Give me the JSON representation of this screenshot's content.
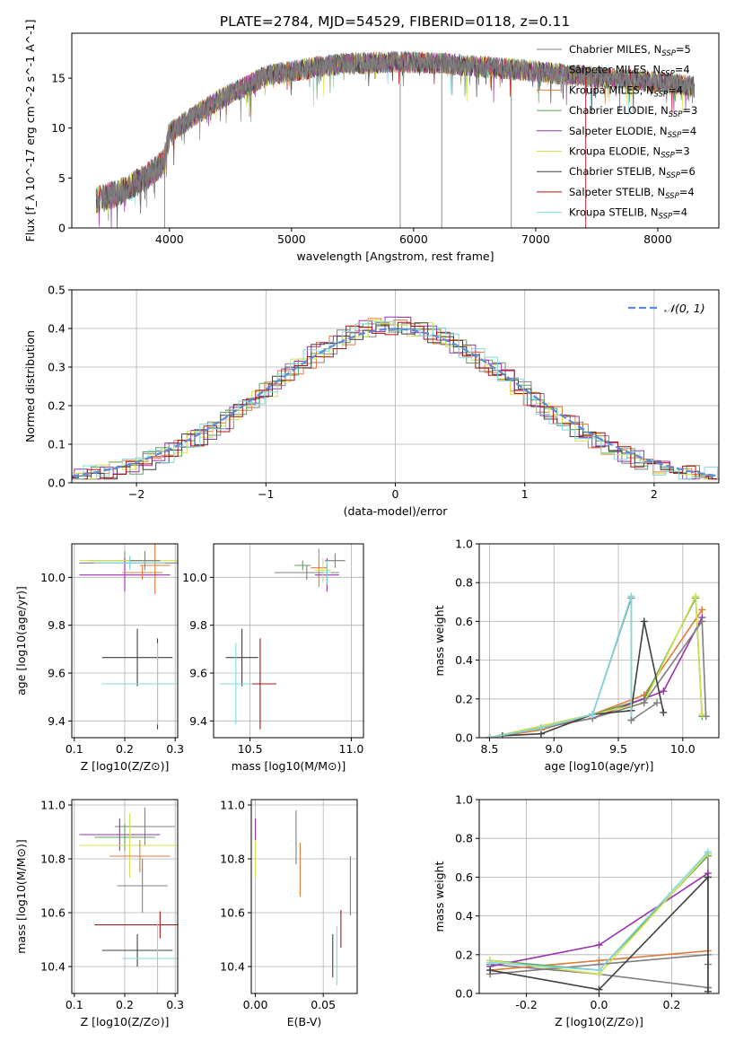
{
  "title": "PLATE=2784, MJD=54529, FIBERID=0118, z=0.11",
  "colors": {
    "axes": "#000000",
    "grid": "#b0b0b0",
    "normal_curve": "#5b8bd9"
  },
  "models": [
    {
      "label": "Chabrier MILES, N_SSP=5",
      "base": "Chabrier MILES, N",
      "sub": "SSP",
      "tail": "=5",
      "color": "#808080"
    },
    {
      "label": "Salpeter MILES, N_SSP=4",
      "base": "Salpeter MILES, N",
      "sub": "SSP",
      "tail": "=4",
      "color": "#7f7f7f"
    },
    {
      "label": "Kroupa MILES, N_SSP=4",
      "base": "Kroupa MILES, N",
      "sub": "SSP",
      "tail": "=4",
      "color": "#e07b39"
    },
    {
      "label": "Chabrier ELODIE, N_SSP=3",
      "base": "Chabrier ELODIE, N",
      "sub": "SSP",
      "tail": "=3",
      "color": "#5aa05a"
    },
    {
      "label": "Salpeter ELODIE, N_SSP=4",
      "base": "Salpeter ELODIE, N",
      "sub": "SSP",
      "tail": "=4",
      "color": "#9b30b0"
    },
    {
      "label": "Kroupa ELODIE, N_SSP=3",
      "base": "Kroupa ELODIE, N",
      "sub": "SSP",
      "tail": "=3",
      "color": "#d4e14a"
    },
    {
      "label": "Chabrier STELIB, N_SSP=6",
      "base": "Chabrier STELIB, N",
      "sub": "SSP",
      "tail": "=6",
      "color": "#404040"
    },
    {
      "label": "Salpeter STELIB, N_SSP=4",
      "base": "Salpeter STELIB, N",
      "sub": "SSP",
      "tail": "=4",
      "color": "#b01010"
    },
    {
      "label": "Kroupa STELIB, N_SSP=4",
      "base": "Kroupa STELIB, N",
      "sub": "SSP",
      "tail": "=4",
      "color": "#80d8e0"
    }
  ],
  "chart_data": [
    {
      "id": "spectrum",
      "type": "line",
      "xlabel": "wavelength [Angstrom, rest frame]",
      "ylabel": "Flux [f_λ 10^-17 erg cm^-2 s^-1 A^-1]",
      "xlim": [
        3200,
        8500
      ],
      "ylim": [
        0,
        19.5
      ],
      "xticks": [
        4000,
        5000,
        6000,
        7000,
        8000
      ],
      "yticks": [
        0,
        5,
        10,
        15
      ],
      "grid": false,
      "legend": "right",
      "continuum": {
        "x": [
          3400,
          3600,
          3800,
          3950,
          4000,
          4200,
          4400,
          4600,
          4800,
          5000,
          5200,
          5400,
          5600,
          5800,
          6000,
          6200,
          6400,
          6600,
          6800,
          7000,
          7200,
          7400,
          7600,
          7800,
          8000,
          8200,
          8300
        ],
        "y": [
          2.8,
          3.6,
          5.0,
          6.5,
          9.5,
          11.2,
          12.8,
          14.0,
          15.3,
          15.7,
          16.1,
          16.4,
          16.5,
          16.6,
          16.6,
          16.5,
          16.3,
          16.1,
          15.9,
          15.7,
          15.4,
          15.2,
          15.0,
          14.8,
          14.6,
          14.3,
          14.1
        ]
      }
    },
    {
      "id": "residuals",
      "type": "histogram",
      "xlabel": "(data-model)/error",
      "ylabel": "Normed distribution",
      "xlim": [
        -2.5,
        2.5
      ],
      "ylim": [
        0,
        0.5
      ],
      "xticks": [
        -2,
        -1,
        0,
        1,
        2
      ],
      "yticks": [
        0.0,
        0.1,
        0.2,
        0.3,
        0.4,
        0.5
      ],
      "grid": true,
      "legend": "top-right",
      "curve_label": "𝒩(0, 1)",
      "bin_width": 0.1
    },
    {
      "id": "age_vs_Z",
      "type": "errorbar",
      "xlabel": "Z [log10(Z/Z⊙)]",
      "ylabel": "age [log10(age/yr)]",
      "xlim": [
        0.095,
        0.305
      ],
      "ylim": [
        9.33,
        10.14
      ],
      "xticks": [
        0.1,
        0.2,
        0.3
      ],
      "yticks": [
        9.4,
        9.6,
        9.8,
        10.0
      ],
      "grid": true,
      "points": [
        {
          "m": 0,
          "x": 0.21,
          "y": 10.06,
          "dx": 0.1,
          "dy": 0.02
        },
        {
          "m": 2,
          "x": 0.26,
          "y": 10.05,
          "dx": 0.03,
          "dy": 0.12
        },
        {
          "m": 3,
          "x": 0.2,
          "y": 10.07,
          "dx": 0.07,
          "dy": 0.04
        },
        {
          "m": 4,
          "x": 0.2,
          "y": 10.01,
          "dx": 0.09,
          "dy": 0.07
        },
        {
          "m": 5,
          "x": 0.21,
          "y": 10.07,
          "dx": 0.1,
          "dy": 0.02
        },
        {
          "m": 1,
          "x": 0.24,
          "y": 10.07,
          "dx": 0.03,
          "dy": 0.04
        },
        {
          "m": 8,
          "x": 0.21,
          "y": 10.06,
          "dx": 0.07,
          "dy": 0.03
        },
        {
          "m": 2,
          "x": 0.235,
          "y": 10.02,
          "dx": 0.04,
          "dy": 0.03
        },
        {
          "m": 6,
          "x": 0.225,
          "y": 9.665,
          "dx": 0.07,
          "dy": 0.12
        },
        {
          "m": 7,
          "x": 0.265,
          "y": 9.555,
          "dx": 0.11,
          "dy": 0.19
        },
        {
          "m": 8,
          "x": 0.265,
          "y": 9.555,
          "dx": 0.11,
          "dy": 0.17
        }
      ]
    },
    {
      "id": "age_vs_mass",
      "type": "errorbar",
      "xlabel": "mass [log10(M/M⊙)]",
      "ylabel": "",
      "xlim": [
        10.32,
        11.06
      ],
      "ylim": [
        9.33,
        10.14
      ],
      "xticks": [
        10.5,
        11.0
      ],
      "yticks": [
        9.4,
        9.6,
        9.8,
        10.0
      ],
      "grid": true,
      "points": [
        {
          "m": 0,
          "x": 10.78,
          "y": 10.02,
          "dx": 0.16,
          "dy": 0.03
        },
        {
          "m": 2,
          "x": 10.84,
          "y": 10.04,
          "dx": 0.04,
          "dy": 0.08
        },
        {
          "m": 4,
          "x": 10.88,
          "y": 10.01,
          "dx": 0.06,
          "dy": 0.07
        },
        {
          "m": 5,
          "x": 10.86,
          "y": 10.03,
          "dx": 0.04,
          "dy": 0.05
        },
        {
          "m": 1,
          "x": 10.92,
          "y": 10.07,
          "dx": 0.05,
          "dy": 0.03
        },
        {
          "m": 8,
          "x": 10.88,
          "y": 10.02,
          "dx": 0.02,
          "dy": 0.05
        },
        {
          "m": 3,
          "x": 10.76,
          "y": 10.05,
          "dx": 0.04,
          "dy": 0.02
        },
        {
          "m": 6,
          "x": 10.46,
          "y": 9.665,
          "dx": 0.08,
          "dy": 0.12
        },
        {
          "m": 7,
          "x": 10.55,
          "y": 9.555,
          "dx": 0.08,
          "dy": 0.19
        },
        {
          "m": 8,
          "x": 10.43,
          "y": 9.555,
          "dx": 0.08,
          "dy": 0.17
        }
      ]
    },
    {
      "id": "weight_vs_age",
      "type": "line",
      "xlabel": "age [log10(age/yr)]",
      "ylabel": "mass weight",
      "xlim": [
        8.42,
        10.28
      ],
      "ylim": [
        0,
        1.0
      ],
      "xticks": [
        8.5,
        9.0,
        9.5,
        10.0
      ],
      "yticks": [
        0.0,
        0.2,
        0.4,
        0.6,
        0.8,
        1.0
      ],
      "grid": true,
      "series": [
        {
          "m": 0,
          "x": [
            8.5,
            8.9,
            9.3,
            9.6,
            9.6
          ],
          "y": [
            0.0,
            0.05,
            0.12,
            0.72,
            0.09
          ]
        },
        {
          "m": 2,
          "x": [
            8.5,
            8.9,
            9.3,
            9.7,
            10.15
          ],
          "y": [
            0.0,
            0.04,
            0.12,
            0.22,
            0.66
          ]
        },
        {
          "m": 3,
          "x": [
            8.5,
            9.3,
            9.7,
            10.1,
            10.15
          ],
          "y": [
            0.0,
            0.12,
            0.2,
            0.72,
            0.11
          ]
        },
        {
          "m": 4,
          "x": [
            8.5,
            9.3,
            9.85,
            10.15
          ],
          "y": [
            0.0,
            0.1,
            0.24,
            0.62
          ]
        },
        {
          "m": 5,
          "x": [
            8.5,
            9.3,
            9.7,
            10.1,
            10.15
          ],
          "y": [
            0.0,
            0.12,
            0.18,
            0.73,
            0.12
          ]
        },
        {
          "m": 1,
          "x": [
            8.5,
            9.3,
            9.7,
            10.15,
            10.18
          ],
          "y": [
            0.0,
            0.1,
            0.18,
            0.6,
            0.11
          ]
        },
        {
          "m": 6,
          "x": [
            8.6,
            8.9,
            9.3,
            9.6,
            9.7,
            9.85
          ],
          "y": [
            0.01,
            0.02,
            0.12,
            0.14,
            0.6,
            0.13
          ]
        },
        {
          "m": 8,
          "x": [
            8.5,
            8.9,
            9.3,
            9.6,
            9.6
          ],
          "y": [
            0.0,
            0.05,
            0.12,
            0.73,
            0.09
          ]
        },
        {
          "m": 0,
          "x": [
            9.6,
            9.8
          ],
          "y": [
            0.09,
            0.18
          ]
        }
      ]
    },
    {
      "id": "mass_vs_Z",
      "type": "errorbar",
      "xlabel": "Z [log10(Z/Z⊙)]",
      "ylabel": "mass [log10(M/M⊙)]",
      "xlim": [
        0.095,
        0.305
      ],
      "ylim": [
        10.3,
        11.02
      ],
      "xticks": [
        0.1,
        0.2,
        0.3
      ],
      "yticks": [
        10.4,
        10.6,
        10.8,
        11.0
      ],
      "grid": true,
      "points": [
        {
          "m": 1,
          "x": 0.24,
          "y": 10.92,
          "dx": 0.06,
          "dy": 0.07
        },
        {
          "m": 4,
          "x": 0.19,
          "y": 10.89,
          "dx": 0.08,
          "dy": 0.06
        },
        {
          "m": 3,
          "x": 0.2,
          "y": 10.88,
          "dx": 0.06,
          "dy": 0.05
        },
        {
          "m": 5,
          "x": 0.21,
          "y": 10.85,
          "dx": 0.1,
          "dy": 0.12
        },
        {
          "m": 2,
          "x": 0.23,
          "y": 10.81,
          "dx": 0.06,
          "dy": 0.06
        },
        {
          "m": 0,
          "x": 0.235,
          "y": 10.7,
          "dx": 0.05,
          "dy": 0.1
        },
        {
          "m": 7,
          "x": 0.27,
          "y": 10.555,
          "dx": 0.13,
          "dy": 0.05
        },
        {
          "m": 6,
          "x": 0.225,
          "y": 10.46,
          "dx": 0.07,
          "dy": 0.06
        },
        {
          "m": 8,
          "x": 0.265,
          "y": 10.43,
          "dx": 0.07,
          "dy": 0.13
        }
      ]
    },
    {
      "id": "mass_vs_ebv",
      "type": "errorbar",
      "xlabel": "E(B-V)",
      "ylabel": "",
      "xlim": [
        -0.003,
        0.075
      ],
      "ylim": [
        10.3,
        11.02
      ],
      "xticks": [
        0.0,
        0.05
      ],
      "yticks": [
        10.4,
        10.6,
        10.8,
        11.0
      ],
      "grid": true,
      "points": [
        {
          "m": 4,
          "x": 0.0,
          "y": 10.9,
          "dx": 0.0,
          "dy": 0.05
        },
        {
          "m": 5,
          "x": 0.0,
          "y": 10.8,
          "dx": 0.0,
          "dy": 0.07
        },
        {
          "m": 1,
          "x": 0.03,
          "y": 10.88,
          "dx": 0.0,
          "dy": 0.1
        },
        {
          "m": 2,
          "x": 0.033,
          "y": 10.76,
          "dx": 0.0,
          "dy": 0.1
        },
        {
          "m": 0,
          "x": 0.07,
          "y": 10.7,
          "dx": 0.0,
          "dy": 0.11
        },
        {
          "m": 7,
          "x": 0.063,
          "y": 10.54,
          "dx": 0.0,
          "dy": 0.07
        },
        {
          "m": 6,
          "x": 0.057,
          "y": 10.44,
          "dx": 0.0,
          "dy": 0.08
        },
        {
          "m": 8,
          "x": 0.06,
          "y": 10.44,
          "dx": 0.0,
          "dy": 0.11
        }
      ]
    },
    {
      "id": "weight_vs_Z",
      "type": "line",
      "xlabel": "Z [log10(Z/Z⊙)]",
      "ylabel": "mass weight",
      "xlim": [
        -0.33,
        0.33
      ],
      "ylim": [
        0,
        1.0
      ],
      "xticks": [
        -0.2,
        0.0,
        0.2
      ],
      "yticks": [
        0.0,
        0.2,
        0.4,
        0.6,
        0.8,
        1.0
      ],
      "grid": true,
      "series": [
        {
          "m": 0,
          "x": [
            -0.3,
            0.0,
            0.3
          ],
          "y": [
            0.15,
            0.1,
            0.03
          ]
        },
        {
          "m": 0,
          "x": [
            0.3,
            0.3,
            0.3
          ],
          "y": [
            0.72,
            0.15,
            0.03
          ]
        },
        {
          "m": 2,
          "x": [
            -0.3,
            0.0,
            0.3
          ],
          "y": [
            0.12,
            0.17,
            0.22
          ]
        },
        {
          "m": 3,
          "x": [
            -0.3,
            0.0,
            0.3
          ],
          "y": [
            0.17,
            0.12,
            0.71
          ]
        },
        {
          "m": 4,
          "x": [
            -0.3,
            0.0,
            0.3
          ],
          "y": [
            0.14,
            0.25,
            0.62
          ]
        },
        {
          "m": 5,
          "x": [
            -0.3,
            0.0,
            0.3
          ],
          "y": [
            0.17,
            0.1,
            0.72
          ]
        },
        {
          "m": 1,
          "x": [
            -0.3,
            0.0,
            0.3
          ],
          "y": [
            0.1,
            0.15,
            0.2
          ]
        },
        {
          "m": 6,
          "x": [
            -0.3,
            0.0,
            0.3
          ],
          "y": [
            0.12,
            0.02,
            0.6
          ]
        },
        {
          "m": 6,
          "x": [
            0.3,
            0.3
          ],
          "y": [
            0.6,
            0.01
          ]
        },
        {
          "m": 8,
          "x": [
            -0.3,
            0.0,
            0.3
          ],
          "y": [
            0.16,
            0.12,
            0.73
          ]
        }
      ]
    }
  ]
}
